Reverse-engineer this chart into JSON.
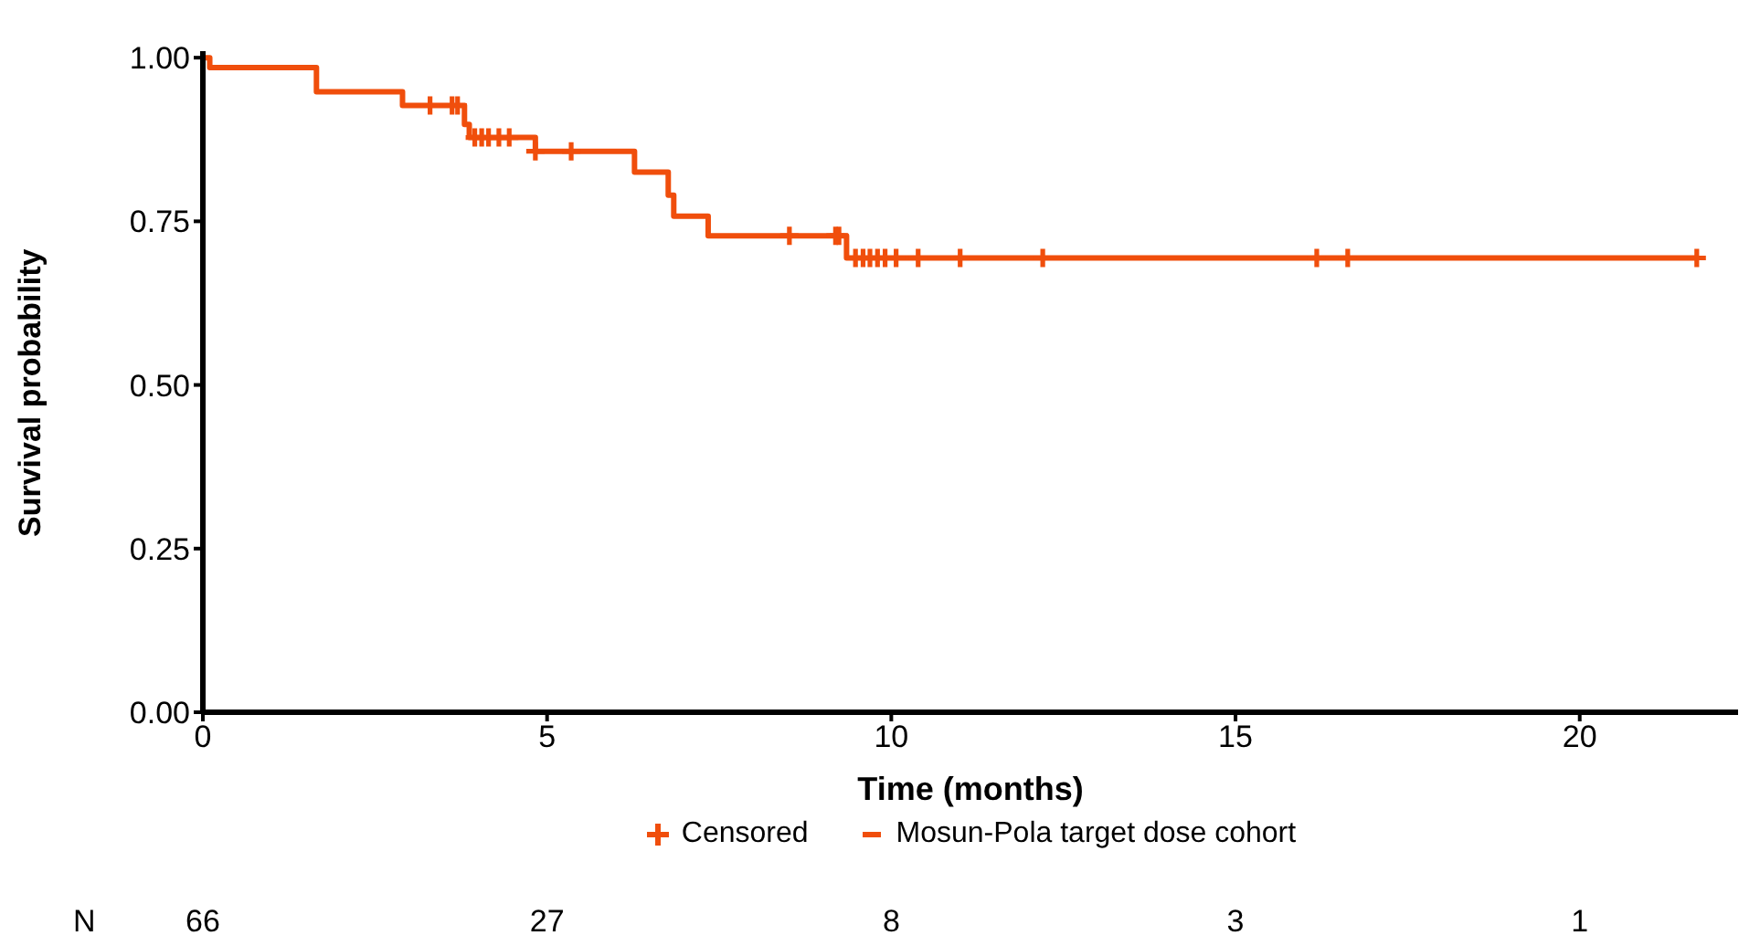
{
  "chart_data": {
    "type": "step",
    "xlabel": "Time (months)",
    "ylabel": "Survival probability",
    "xlim": [
      0,
      22.3
    ],
    "xticks": [
      0,
      5,
      10,
      15,
      20
    ],
    "ylim": [
      0,
      1.01
    ],
    "yticks": [
      {
        "value": 0,
        "label": "0.00"
      },
      {
        "value": 0.25,
        "label": "0.25"
      },
      {
        "value": 0.5,
        "label": "0.50"
      },
      {
        "value": 0.75,
        "label": "0.75"
      },
      {
        "value": 1,
        "label": "1.00"
      }
    ],
    "legend": "bottom",
    "line_style": "solid",
    "annotations": [
      "N",
      "66",
      "27",
      "8",
      "3",
      "1"
    ],
    "series": [
      {
        "name": "Censored",
        "type": "scatter",
        "marker": "cross",
        "color": "#f04e0c",
        "x": [
          3.3,
          3.62,
          3.7,
          3.95,
          4.05,
          4.15,
          4.3,
          4.45,
          4.83,
          5.35,
          8.52,
          9.19,
          9.24,
          9.48,
          9.59,
          9.69,
          9.8,
          9.91,
          10.07,
          10.39,
          11.0,
          12.2,
          16.18,
          16.63,
          21.7
        ],
        "values": [
          0.927,
          0.927,
          0.927,
          0.878,
          0.878,
          0.878,
          0.878,
          0.878,
          0.857,
          0.857,
          0.728,
          0.728,
          0.728,
          0.694,
          0.694,
          0.694,
          0.694,
          0.694,
          0.694,
          0.694,
          0.694,
          0.694,
          0.694,
          0.694,
          0.694
        ]
      },
      {
        "name": "Mosun-Pola target dose cohort",
        "color": "#f04e0c",
        "x": [
          0,
          0.1,
          1.65,
          2.9,
          3.8,
          3.87,
          4.83,
          6.27,
          6.76,
          6.84,
          7.34,
          9.35,
          21.7
        ],
        "values": [
          1.0,
          0.985,
          0.948,
          0.927,
          0.898,
          0.878,
          0.857,
          0.825,
          0.79,
          0.758,
          0.728,
          0.694,
          0.694
        ]
      }
    ]
  }
}
